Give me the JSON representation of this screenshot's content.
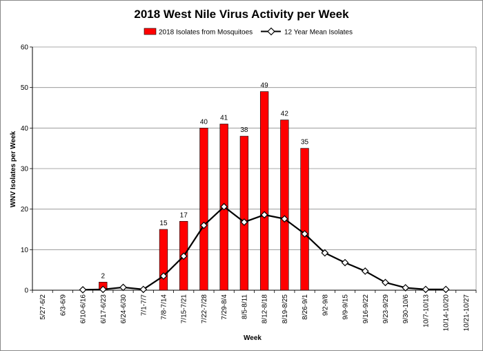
{
  "chart_data": {
    "type": "bar",
    "title": "2018 West Nile Virus Activity per Week",
    "xlabel": "Week",
    "ylabel": "WNV Isolates per Week",
    "ylim": [
      0,
      60
    ],
    "yticks": [
      0,
      10,
      20,
      30,
      40,
      50,
      60
    ],
    "grid": true,
    "legend_position": "top-center",
    "colors": {
      "bars": "#ff0000",
      "line": "#000000",
      "marker_fill": "#ffffff"
    },
    "categories": [
      "5/27-6/2",
      "6/3-6/9",
      "6/10-6/16",
      "6/17-6/23",
      "6/24-6/30",
      "7/1-7/7",
      "7/8-7/14",
      "7/15-7/21",
      "7/22-7/28",
      "7/29-8/4",
      "8/5-8/11",
      "8/12-8/18",
      "8/19-8/25",
      "8/26-9/1",
      "9/2-9/8",
      "9/9-9/15",
      "9/16-9/22",
      "9/23-9/29",
      "9/30-10/6",
      "10/7-10/13",
      "10/14-10/20",
      "10/21-10/27"
    ],
    "series": [
      {
        "name": "2018 Isolates from Mosquitoes",
        "kind": "bar",
        "values": [
          null,
          null,
          null,
          2,
          null,
          null,
          15,
          17,
          40,
          41,
          38,
          49,
          42,
          35,
          null,
          null,
          null,
          null,
          null,
          null,
          null,
          null
        ]
      },
      {
        "name": "12 Year Mean Isolates",
        "kind": "line",
        "values": [
          null,
          null,
          0.1,
          0.2,
          0.7,
          0.2,
          3.5,
          8.4,
          16.0,
          20.6,
          16.8,
          18.6,
          17.6,
          13.9,
          9.2,
          6.8,
          4.7,
          1.9,
          0.6,
          0.2,
          0.2,
          null
        ]
      }
    ]
  }
}
